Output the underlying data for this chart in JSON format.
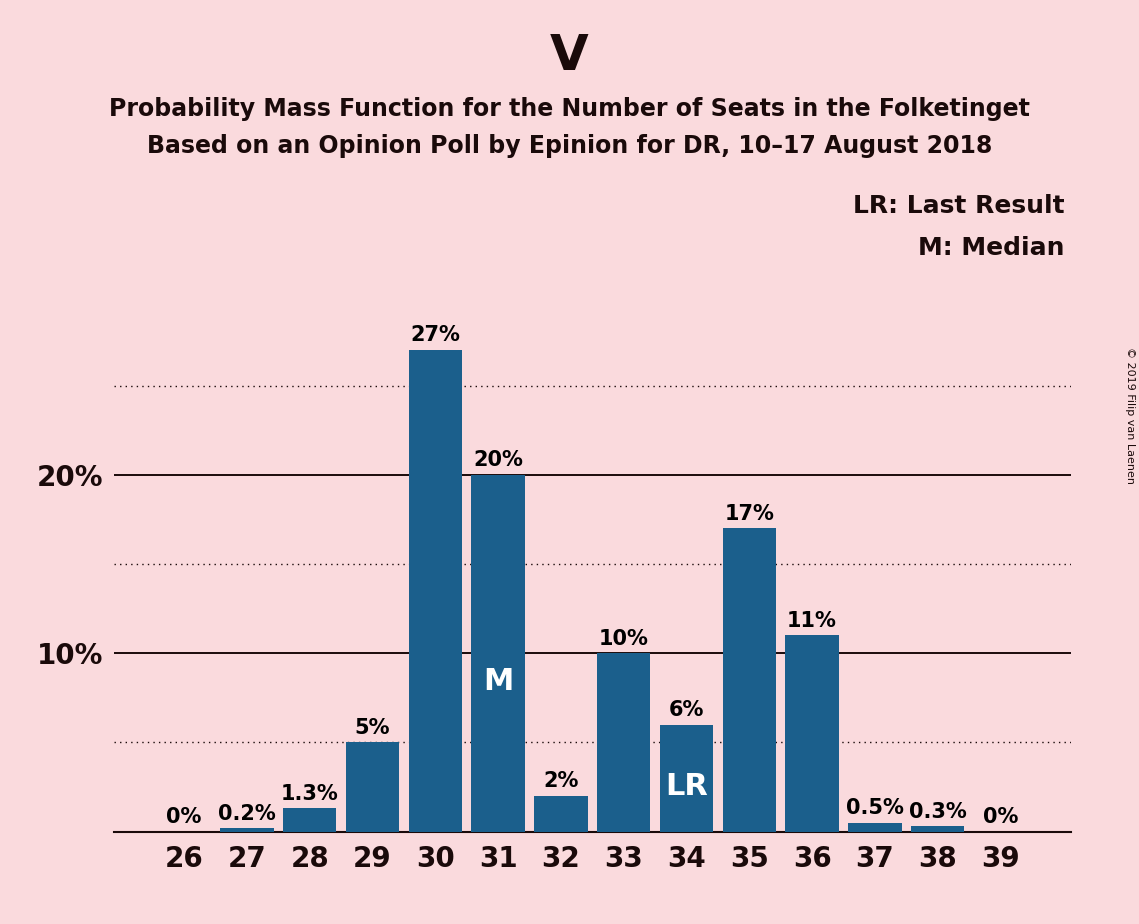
{
  "title_main": "V",
  "title_line1": "Probability Mass Function for the Number of Seats in the Folketinget",
  "title_line2": "Based on an Opinion Poll by Epinion for DR, 10–17 August 2018",
  "copyright_text": "© 2019 Filip van Laenen",
  "categories": [
    26,
    27,
    28,
    29,
    30,
    31,
    32,
    33,
    34,
    35,
    36,
    37,
    38,
    39
  ],
  "values": [
    0.0,
    0.2,
    1.3,
    5.0,
    27.0,
    20.0,
    2.0,
    10.0,
    6.0,
    17.0,
    11.0,
    0.5,
    0.3,
    0.0
  ],
  "labels": [
    "0%",
    "0.2%",
    "1.3%",
    "5%",
    "27%",
    "20%",
    "2%",
    "10%",
    "6%",
    "17%",
    "11%",
    "0.5%",
    "0.3%",
    "0%"
  ],
  "bar_color": "#1b5f8c",
  "background_color": "#fadadd",
  "median_seat": 31,
  "last_result_seat": 34,
  "legend_lr": "LR: Last Result",
  "legend_m": "M: Median",
  "solid_yticks": [
    10,
    20
  ],
  "dotted_yticks": [
    5,
    15,
    25
  ],
  "ylim": [
    0,
    29
  ],
  "title_main_fontsize": 36,
  "title_sub_fontsize": 17,
  "label_fontsize": 15,
  "tick_fontsize": 20,
  "legend_fontsize": 18,
  "inline_label_fontsize": 22
}
